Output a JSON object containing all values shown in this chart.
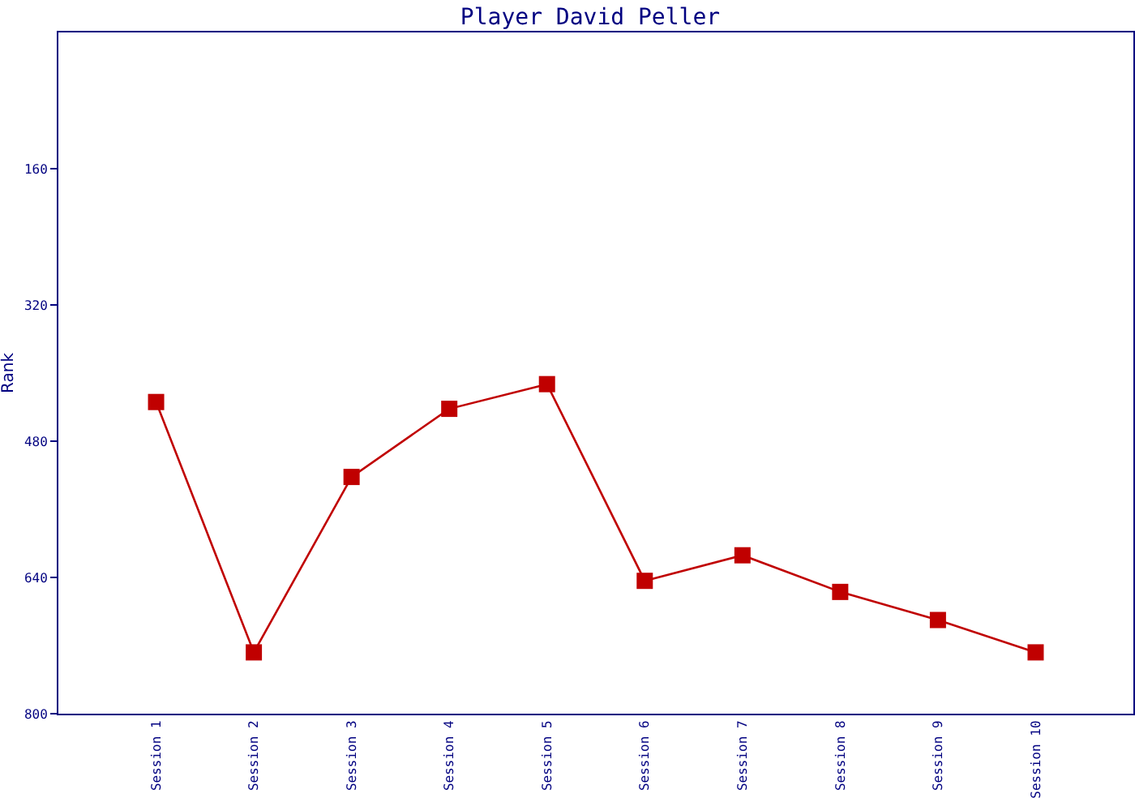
{
  "chart_data": {
    "type": "line",
    "title": "Player David Peller",
    "ylabel": "Rank",
    "categories": [
      "Session 1",
      "Session 2",
      "Session 3",
      "Session 4",
      "Session 5",
      "Session 6",
      "Session 7",
      "Session 8",
      "Session 9",
      "Session 10"
    ],
    "series": [
      {
        "color": "#c00000",
        "values": [
          434,
          728,
          522,
          442,
          413,
          644,
          614,
          657,
          690,
          728
        ]
      }
    ],
    "ylim": [
      800,
      0
    ],
    "yticks": [
      160,
      320,
      480,
      640,
      800
    ],
    "marker": "square",
    "line_style": "solid"
  }
}
